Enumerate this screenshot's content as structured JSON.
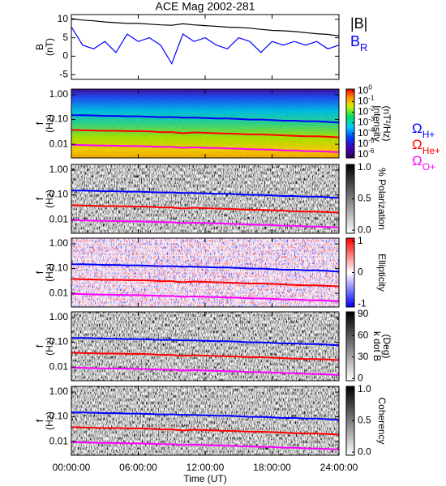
{
  "x": [
    0,
    1,
    2,
    3,
    4,
    5,
    6,
    7,
    8,
    9,
    10,
    11,
    12,
    13,
    14,
    15,
    16,
    17,
    18,
    19,
    20,
    21,
    22,
    23,
    24
  ],
  "xlim": [
    0,
    24
  ],
  "xticks": [
    {
      "value": 0,
      "label": "00:00:00"
    },
    {
      "value": 6,
      "label": "06:00:00"
    },
    {
      "value": 12,
      "label": "12:00:00"
    },
    {
      "value": 18,
      "label": "18:00:00"
    },
    {
      "value": 24,
      "label": "24:00:00"
    }
  ],
  "xlabel": "Time (UT)",
  "gyrofrequencies": [
    {
      "name": "Ω",
      "subscript": "H+",
      "color": "#0000ff",
      "values": [
        0.15,
        0.15,
        0.145,
        0.14,
        0.14,
        0.135,
        0.135,
        0.13,
        0.125,
        0.125,
        0.12,
        0.12,
        0.115,
        0.11,
        0.11,
        0.105,
        0.1,
        0.1,
        0.095,
        0.09,
        0.09,
        0.085,
        0.085,
        0.08,
        0.075
      ]
    },
    {
      "name": "Ω",
      "subscript": "He+",
      "color": "#ff0000",
      "values": [
        0.038,
        0.037,
        0.036,
        0.035,
        0.035,
        0.034,
        0.034,
        0.033,
        0.031,
        0.031,
        0.028,
        0.03,
        0.029,
        0.028,
        0.027,
        0.026,
        0.025,
        0.025,
        0.024,
        0.023,
        0.022,
        0.021,
        0.021,
        0.02,
        0.019
      ]
    },
    {
      "name": "Ω",
      "subscript": "O+",
      "color": "#ff00ff",
      "values": [
        0.0095,
        0.0093,
        0.009,
        0.0088,
        0.0087,
        0.0085,
        0.0084,
        0.0082,
        0.0079,
        0.0078,
        0.0072,
        0.0075,
        0.0072,
        0.007,
        0.0068,
        0.0066,
        0.0063,
        0.0062,
        0.006,
        0.0057,
        0.0056,
        0.0053,
        0.0052,
        0.005,
        0.0048
      ]
    }
  ],
  "chart_data": [
    {
      "type": "line",
      "title": "ACE Mag 2002-281",
      "ylabel": [
        "B",
        "(nT)"
      ],
      "ylim": [
        -6.3,
        11.3
      ],
      "yticks": [
        -5,
        0,
        5,
        10
      ],
      "series": [
        {
          "name": "|B|",
          "color": "#000000",
          "values": [
            10.2,
            9.8,
            9.6,
            9.3,
            9.1,
            8.9,
            8.9,
            8.7,
            8.5,
            8.4,
            8.8,
            8.5,
            8.3,
            8.1,
            7.9,
            7.8,
            7.6,
            7.3,
            7.0,
            6.9,
            6.7,
            6.4,
            6.1,
            5.9,
            5.5
          ]
        },
        {
          "name": "B",
          "subscript": "R",
          "color": "#0000ff",
          "values": [
            8,
            3,
            2,
            4,
            1,
            6,
            4,
            5,
            3,
            -2,
            6,
            4,
            5,
            3,
            2,
            5,
            4,
            1,
            4,
            3,
            4,
            3,
            4,
            2,
            3
          ]
        }
      ]
    },
    {
      "type": "spectrogram",
      "ylabel": [
        "f",
        "(Hz)"
      ],
      "log_y": true,
      "ylim": [
        0.0028,
        1.7
      ],
      "yticks": [
        {
          "value": 1,
          "label": "1.00"
        },
        {
          "value": 0.1,
          "label": "0.10"
        },
        {
          "value": 0.01,
          "label": "0.01"
        }
      ],
      "colormap": "rainbow",
      "colorbar": {
        "label": [
          "Intensity",
          "(nT²/Hz)"
        ],
        "log": true,
        "lim": [
          5e-07,
          1.5
        ],
        "ticks": [
          {
            "value": 1,
            "label": "10",
            "exponent": "0"
          },
          {
            "value": 0.1,
            "label": "10",
            "exponent": "-1"
          },
          {
            "value": 0.01,
            "label": "10",
            "exponent": "-2"
          },
          {
            "value": 0.001,
            "label": "10",
            "exponent": "-3"
          },
          {
            "value": 0.0001,
            "label": "10",
            "exponent": "-4"
          },
          {
            "value": 1e-05,
            "label": "10",
            "exponent": "-5"
          },
          {
            "value": 1e-06,
            "label": "10",
            "exponent": "-6"
          }
        ]
      }
    },
    {
      "type": "spectrogram",
      "ylabel": [
        "f",
        "(Hz)"
      ],
      "log_y": true,
      "ylim": [
        0.0028,
        1.7
      ],
      "yticks": [
        {
          "value": 1,
          "label": "1.00"
        },
        {
          "value": 0.1,
          "label": "0.10"
        },
        {
          "value": 0.01,
          "label": "0.01"
        }
      ],
      "colormap": "gray",
      "colorbar": {
        "label": [
          "% Polarization"
        ],
        "lim": [
          -0.05,
          1.05
        ],
        "ticks": [
          {
            "value": 0,
            "label": "0.0"
          },
          {
            "value": 0.5,
            "label": "0.5"
          },
          {
            "value": 1,
            "label": "1.0"
          }
        ]
      }
    },
    {
      "type": "spectrogram",
      "ylabel": [
        "f",
        "(Hz)"
      ],
      "log_y": true,
      "ylim": [
        0.0028,
        1.7
      ],
      "yticks": [
        {
          "value": 1,
          "label": "1.00"
        },
        {
          "value": 0.1,
          "label": "0.10"
        },
        {
          "value": 0.01,
          "label": "0.01"
        }
      ],
      "colormap": "bwr",
      "colorbar": {
        "label": [
          "Ellipticity"
        ],
        "lim": [
          -1.1,
          1.1
        ],
        "ticks": [
          -1,
          0,
          1
        ]
      }
    },
    {
      "type": "spectrogram",
      "ylabel": [
        "f",
        "(Hz)"
      ],
      "log_y": true,
      "ylim": [
        0.0028,
        1.7
      ],
      "yticks": [
        {
          "value": 1,
          "label": "1.00"
        },
        {
          "value": 0.1,
          "label": "0.10"
        },
        {
          "value": 0.01,
          "label": "0.01"
        }
      ],
      "colormap": "gray",
      "colorbar": {
        "label": [
          "k dot B",
          "(Deg)"
        ],
        "lim": [
          -3,
          93
        ],
        "ticks": [
          0,
          30,
          60,
          90
        ]
      }
    },
    {
      "type": "spectrogram",
      "ylabel": [
        "f",
        "(Hz)"
      ],
      "log_y": true,
      "ylim": [
        0.0028,
        1.7
      ],
      "yticks": [
        {
          "value": 1,
          "label": "1.00"
        },
        {
          "value": 0.1,
          "label": "0.10"
        },
        {
          "value": 0.01,
          "label": "0.01"
        }
      ],
      "colormap": "gray",
      "colorbar": {
        "label": [
          "Coherency"
        ],
        "lim": [
          -0.05,
          1.05
        ],
        "ticks": [
          {
            "value": 0,
            "label": "0.0"
          },
          {
            "value": 0.5,
            "label": "0.5"
          },
          {
            "value": 1,
            "label": "1.0"
          }
        ]
      }
    }
  ]
}
